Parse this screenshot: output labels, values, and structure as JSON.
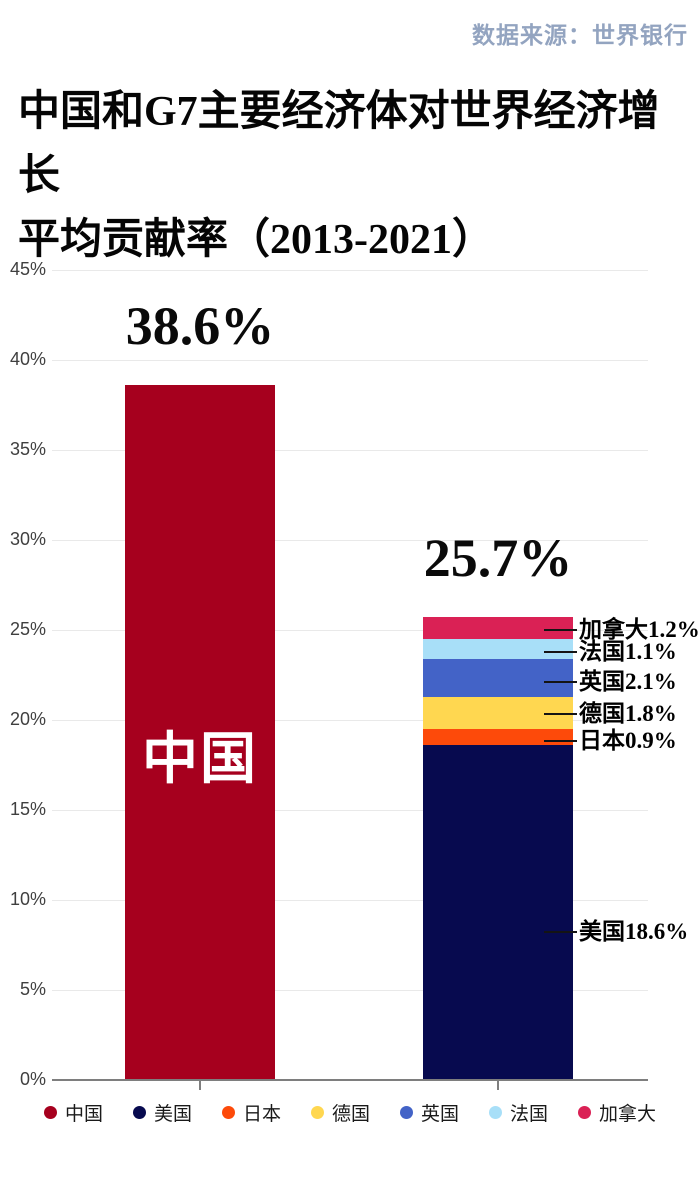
{
  "source": {
    "label": "数据来源：世界银行"
  },
  "title": {
    "line1": "中国和G7主要经济体对世界经济增长",
    "line2": "平均贡献率（2013-2021）"
  },
  "chart_data": {
    "type": "bar",
    "stacked": true,
    "title": "中国和G7主要经济体对世界经济增长平均贡献率（2013-2021）",
    "source": "数据来源：世界银行",
    "ylim": [
      0,
      45
    ],
    "ytick_step": 5,
    "ytick_suffix": "%",
    "grid": true,
    "legend_position": "bottom",
    "bars": [
      {
        "total": 38.6,
        "value_label": "38.6%",
        "inner_label": "中国",
        "segments": [
          {
            "name": "中国",
            "value": 38.6,
            "color": "#A6001E",
            "callout": false
          }
        ]
      },
      {
        "total": 25.7,
        "value_label": "25.7%",
        "inner_label": "",
        "segments": [
          {
            "name": "美国",
            "value": 18.6,
            "color": "#070A4F",
            "callout": true
          },
          {
            "name": "日本",
            "value": 0.9,
            "color": "#FD4A0A",
            "callout": true
          },
          {
            "name": "德国",
            "value": 1.8,
            "color": "#FFD750",
            "callout": true
          },
          {
            "name": "英国",
            "value": 2.1,
            "color": "#4363C7",
            "callout": true
          },
          {
            "name": "法国",
            "value": 1.1,
            "color": "#A8DFF8",
            "callout": true
          },
          {
            "name": "加拿大",
            "value": 1.2,
            "color": "#DA2155",
            "callout": true
          }
        ]
      }
    ],
    "legend": [
      {
        "label": "中国",
        "color": "#A6001E"
      },
      {
        "label": "美国",
        "color": "#070A4F"
      },
      {
        "label": "日本",
        "color": "#FD4A0A"
      },
      {
        "label": "德国",
        "color": "#FFD750"
      },
      {
        "label": "英国",
        "color": "#4363C7"
      },
      {
        "label": "法国",
        "color": "#A8DFF8"
      },
      {
        "label": "加拿大",
        "color": "#DA2155"
      }
    ]
  }
}
